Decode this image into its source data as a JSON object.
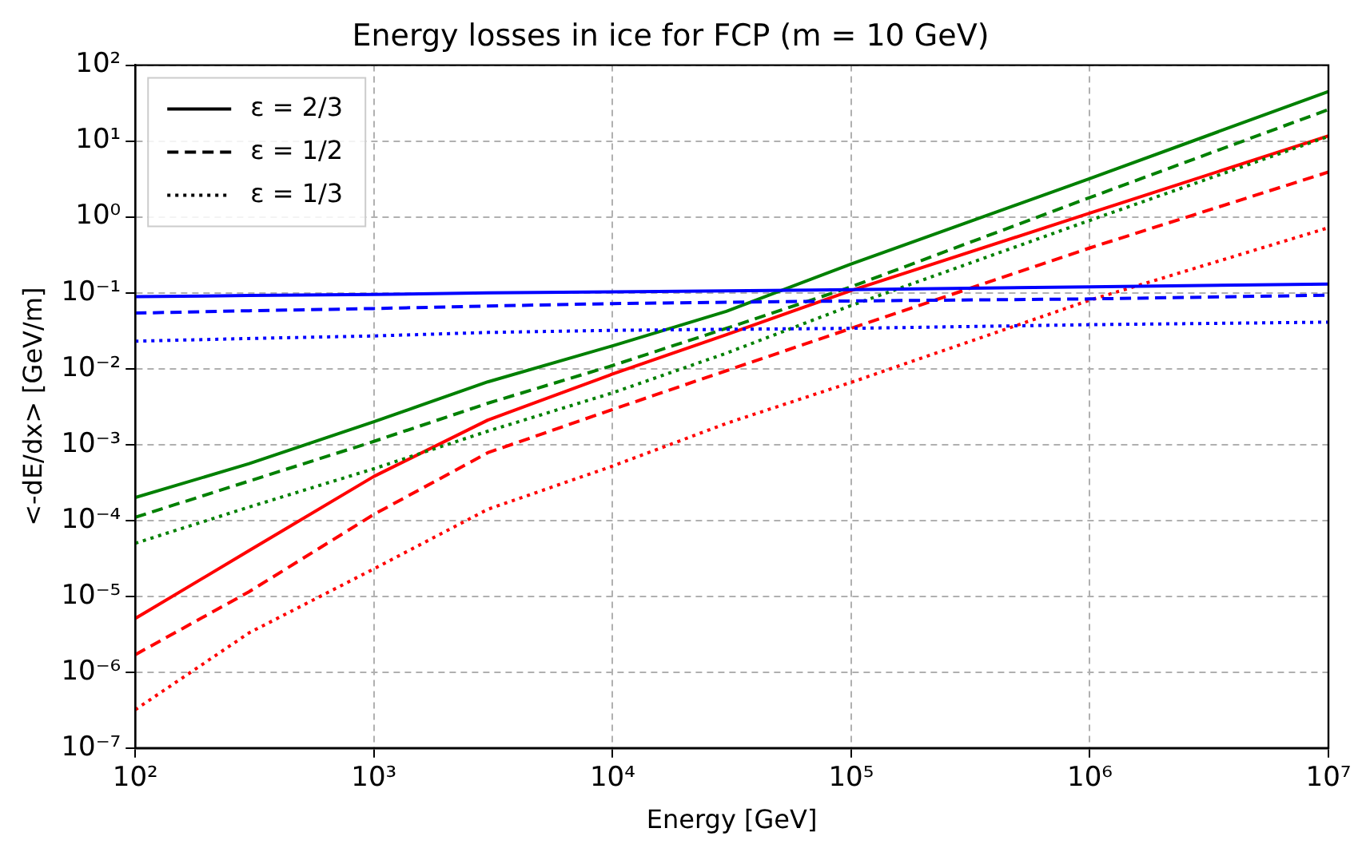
{
  "chart_data": {
    "type": "line",
    "title": "Energy losses in ice for FCP (m = 10 GeV)",
    "xlabel": "Energy [GeV]",
    "ylabel": "<-dE/dx> [GeV/m]",
    "x": [
      100,
      300,
      1000,
      3000,
      10000,
      30000,
      100000,
      1000000,
      10000000
    ],
    "series": [
      {
        "name": "ε = 2/3",
        "color": "#000000",
        "line_style": "solid",
        "values": [
          null,
          null,
          null,
          null,
          null,
          null,
          null,
          null,
          null
        ]
      },
      {
        "name": "ε = 1/2",
        "color": "#000000",
        "line_style": "dashed",
        "values": [
          null,
          null,
          null,
          null,
          null,
          null,
          null,
          null,
          null
        ]
      },
      {
        "name": "ε = 1/3",
        "color": "#000000",
        "line_style": "dotted",
        "values": [
          null,
          null,
          null,
          null,
          null,
          null,
          null,
          null,
          null
        ]
      },
      {
        "color": "#0000ff",
        "line_style": "solid",
        "values": [
          0.089,
          0.092,
          0.095,
          0.1,
          0.103,
          0.106,
          0.11,
          0.12,
          0.13
        ]
      },
      {
        "color": "#0000ff",
        "line_style": "dashed",
        "values": [
          0.054,
          0.058,
          0.062,
          0.067,
          0.072,
          0.075,
          0.078,
          0.083,
          0.093
        ]
      },
      {
        "color": "#0000ff",
        "line_style": "dotted",
        "values": [
          0.023,
          0.025,
          0.027,
          0.03,
          0.032,
          0.033,
          0.034,
          0.038,
          0.041
        ]
      },
      {
        "color": "#008000",
        "line_style": "solid",
        "values": [
          0.0002,
          0.00056,
          0.002,
          0.0067,
          0.02,
          0.057,
          0.24,
          3.2,
          45
        ]
      },
      {
        "color": "#008000",
        "line_style": "dashed",
        "values": [
          0.00011,
          0.00033,
          0.0011,
          0.0035,
          0.011,
          0.034,
          0.12,
          1.8,
          26
        ]
      },
      {
        "color": "#008000",
        "line_style": "dotted",
        "values": [
          5e-05,
          0.00015,
          0.00048,
          0.0015,
          0.0048,
          0.016,
          0.068,
          0.9,
          11.5
        ]
      },
      {
        "color": "#ff0000",
        "line_style": "solid",
        "values": [
          5.1e-06,
          4e-05,
          0.00038,
          0.0021,
          0.0085,
          0.028,
          0.107,
          1.12,
          11.7
        ]
      },
      {
        "color": "#ff0000",
        "line_style": "dashed",
        "values": [
          1.7e-06,
          1.15e-05,
          0.00012,
          0.00078,
          0.0029,
          0.0094,
          0.034,
          0.39,
          3.9
        ]
      },
      {
        "color": "#ff0000",
        "line_style": "dotted",
        "values": [
          3.2e-07,
          3.3e-06,
          2.3e-05,
          0.00014,
          0.00052,
          0.0019,
          0.0066,
          0.08,
          0.72
        ]
      }
    ],
    "log": "xy",
    "grid": true,
    "legend": "top left",
    "marker": "none",
    "xlim": [
      100,
      10000000
    ],
    "ylim": [
      1e-07,
      100
    ],
    "xticks": [
      {
        "value": 100,
        "label": "10²"
      },
      {
        "value": 1000,
        "label": "10³"
      },
      {
        "value": 10000,
        "label": "10⁴"
      },
      {
        "value": 100000,
        "label": "10⁵"
      },
      {
        "value": 1000000,
        "label": "10⁶"
      },
      {
        "value": 10000000,
        "label": "10⁷"
      }
    ],
    "yticks": [
      {
        "value": 1e-07,
        "label": "10⁻⁷"
      },
      {
        "value": 1e-06,
        "label": "10⁻⁶"
      },
      {
        "value": 1e-05,
        "label": "10⁻⁵"
      },
      {
        "value": 0.0001,
        "label": "10⁻⁴"
      },
      {
        "value": 0.001,
        "label": "10⁻³"
      },
      {
        "value": 0.01,
        "label": "10⁻²"
      },
      {
        "value": 0.1,
        "label": "10⁻¹"
      },
      {
        "value": 1,
        "label": "10⁰"
      },
      {
        "value": 10,
        "label": "10¹"
      },
      {
        "value": 100,
        "label": "10²"
      }
    ]
  }
}
